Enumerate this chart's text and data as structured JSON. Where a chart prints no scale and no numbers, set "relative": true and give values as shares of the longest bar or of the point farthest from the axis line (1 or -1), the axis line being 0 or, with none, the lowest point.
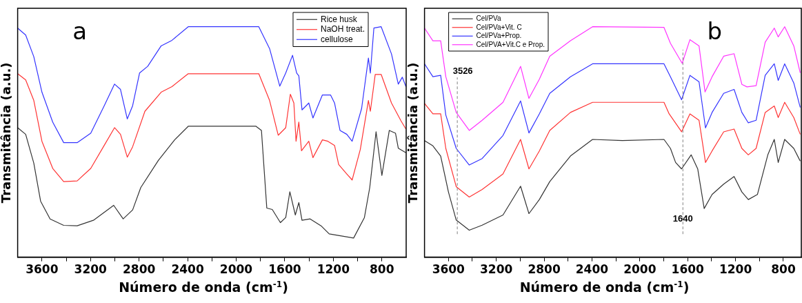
{
  "chart_data": [
    {
      "type": "line",
      "relative": true,
      "xlabel": "Número de onda (cm$^{-1}$)",
      "ylabel": "Transmitância (a.u.)",
      "xlim": [
        3800,
        600
      ],
      "xticks": [
        3600,
        {
          "value": 3400,
          "label": null
        },
        3200,
        {
          "value": 3000,
          "label": null
        },
        2800,
        {
          "value": 2600,
          "label": null
        },
        2400,
        {
          "value": 2200,
          "label": null
        },
        2000,
        {
          "value": 1800,
          "label": null
        },
        1600,
        {
          "value": 1400,
          "label": null
        },
        1200,
        {
          "value": 1000,
          "label": null
        },
        800
      ],
      "grid": false,
      "legend": "top right",
      "marker": "none",
      "line_style": "solid",
      "annotations": [
        "a"
      ],
      "series": [
        {
          "name": "Rice husk",
          "color": "#333333",
          "x": [
            3800,
            3734,
            3667,
            3611,
            3533,
            3421,
            3310,
            3176,
            3009,
            2931,
            2853,
            2786,
            2641,
            2507,
            2395,
            1837,
            1792,
            1748,
            1703,
            1636,
            1592,
            1558,
            1513,
            1484,
            1458,
            1391,
            1301,
            1234,
            1167,
            1033,
            944,
            900,
            848,
            800,
            739,
            688,
            665,
            602
          ],
          "values": [
            0.562,
            0.533,
            0.408,
            0.243,
            0.166,
            0.138,
            0.136,
            0.16,
            0.225,
            0.166,
            0.205,
            0.302,
            0.42,
            0.509,
            0.568,
            0.568,
            0.55,
            0.213,
            0.207,
            0.15,
            0.172,
            0.284,
            0.183,
            0.237,
            0.16,
            0.166,
            0.136,
            0.101,
            0.095,
            0.083,
            0.172,
            0.302,
            0.544,
            0.355,
            0.55,
            0.538,
            0.473,
            0.453
          ]
        },
        {
          "name": "NaOH treat.",
          "color": "#ff3333",
          "x": [
            3800,
            3734,
            3667,
            3600,
            3511,
            3421,
            3310,
            3198,
            3087,
            3002,
            2953,
            2897,
            2853,
            2752,
            2618,
            2529,
            2395,
            1814,
            1725,
            1654,
            1592,
            1554,
            1525,
            1507,
            1484,
            1462,
            1402,
            1368,
            1290,
            1245,
            1190,
            1156,
            1089,
            1045,
            978,
            911,
            895,
            855,
            806,
            721,
            643,
            602
          ],
          "values": [
            0.796,
            0.769,
            0.68,
            0.503,
            0.385,
            0.328,
            0.331,
            0.385,
            0.485,
            0.562,
            0.533,
            0.434,
            0.479,
            0.633,
            0.716,
            0.74,
            0.796,
            0.796,
            0.68,
            0.529,
            0.562,
            0.707,
            0.669,
            0.503,
            0.586,
            0.462,
            0.503,
            0.432,
            0.509,
            0.503,
            0.485,
            0.402,
            0.361,
            0.335,
            0.467,
            0.68,
            0.633,
            0.793,
            0.793,
            0.669,
            0.592,
            0.556
          ]
        },
        {
          "name": "cellulose",
          "color": "#3333ff",
          "x": [
            3800,
            3734,
            3667,
            3600,
            3511,
            3421,
            3310,
            3198,
            3087,
            3002,
            2953,
            2897,
            2853,
            2796,
            2729,
            2618,
            2529,
            2395,
            1814,
            1725,
            1641,
            1592,
            1536,
            1502,
            1484,
            1458,
            1402,
            1368,
            1290,
            1223,
            1190,
            1145,
            1089,
            1045,
            967,
            911,
            895,
            866,
            806,
            721,
            665,
            632,
            602
          ],
          "values": [
            0.994,
            0.964,
            0.87,
            0.716,
            0.586,
            0.497,
            0.497,
            0.538,
            0.657,
            0.751,
            0.728,
            0.6,
            0.657,
            0.799,
            0.828,
            0.917,
            0.941,
            1.0,
            1.0,
            0.905,
            0.742,
            0.799,
            0.876,
            0.799,
            0.787,
            0.639,
            0.669,
            0.604,
            0.704,
            0.704,
            0.669,
            0.55,
            0.533,
            0.503,
            0.645,
            0.864,
            0.799,
            0.994,
            1.0,
            0.882,
            0.751,
            0.781,
            0.74
          ]
        }
      ]
    },
    {
      "type": "line",
      "relative": true,
      "xlabel": "Número de onda (cm$^{-1}$)",
      "ylabel": "Transmitância (a.u.)",
      "xlim": [
        3800,
        650
      ],
      "xticks": [
        3600,
        {
          "value": 3400,
          "label": null
        },
        3200,
        {
          "value": 3000,
          "label": null
        },
        2800,
        {
          "value": 2600,
          "label": null
        },
        2400,
        {
          "value": 2200,
          "label": null
        },
        2000,
        {
          "value": 1800,
          "label": null
        },
        1600,
        {
          "value": 1400,
          "label": null
        },
        1200,
        {
          "value": 1000,
          "label": null
        },
        800
      ],
      "grid": false,
      "legend": "top left",
      "marker": "none",
      "line_style": "solid",
      "annotations": [
        "b"
      ],
      "ref_lines": [
        {
          "axis": "x",
          "value": 3526,
          "label": "3526",
          "color": "#808080",
          "line_style": "dashed"
        },
        {
          "axis": "x",
          "value": 1640,
          "label": "1640",
          "color": "#808080",
          "line_style": "dashed"
        }
      ],
      "series": [
        {
          "name": "Cel/PVa",
          "color": "#333333",
          "x": [
            3800,
            3730,
            3665,
            3600,
            3535,
            3426,
            3318,
            3144,
            2997,
            2927,
            2840,
            2753,
            2580,
            2395,
            2146,
            1798,
            1744,
            1701,
            1651,
            1571,
            1516,
            1462,
            1396,
            1299,
            1212,
            1147,
            1093,
            1017,
            930,
            876,
            843,
            789,
            713,
            659
          ],
          "values": [
            0.506,
            0.483,
            0.439,
            0.283,
            0.161,
            0.117,
            0.139,
            0.183,
            0.308,
            0.189,
            0.25,
            0.328,
            0.439,
            0.511,
            0.506,
            0.511,
            0.472,
            0.411,
            0.383,
            0.444,
            0.383,
            0.211,
            0.272,
            0.317,
            0.35,
            0.283,
            0.25,
            0.272,
            0.444,
            0.511,
            0.411,
            0.511,
            0.472,
            0.417
          ]
        },
        {
          "name": "Cel/PVa+Vit. C",
          "color": "#ff3333",
          "x": [
            3800,
            3730,
            3665,
            3622,
            3535,
            3426,
            3318,
            3144,
            2997,
            2927,
            2840,
            2753,
            2580,
            2395,
            1798,
            1755,
            1651,
            1581,
            1505,
            1451,
            1396,
            1299,
            1212,
            1147,
            1093,
            1028,
            952,
            876,
            843,
            789,
            713,
            659
          ],
          "values": [
            0.667,
            0.622,
            0.622,
            0.472,
            0.306,
            0.261,
            0.294,
            0.361,
            0.511,
            0.383,
            0.461,
            0.55,
            0.628,
            0.672,
            0.672,
            0.622,
            0.544,
            0.622,
            0.594,
            0.411,
            0.461,
            0.544,
            0.556,
            0.472,
            0.444,
            0.472,
            0.628,
            0.656,
            0.606,
            0.672,
            0.606,
            0.533
          ]
        },
        {
          "name": "Cel/PVa+Prop.",
          "color": "#3333ff",
          "x": [
            3800,
            3730,
            3665,
            3622,
            3535,
            3426,
            3318,
            3144,
            2997,
            2927,
            2840,
            2753,
            2580,
            2395,
            1798,
            1744,
            1651,
            1581,
            1505,
            1451,
            1396,
            1299,
            1212,
            1147,
            1093,
            1028,
            952,
            876,
            843,
            789,
            713,
            659
          ],
          "values": [
            0.839,
            0.783,
            0.789,
            0.617,
            0.472,
            0.4,
            0.428,
            0.528,
            0.678,
            0.539,
            0.622,
            0.711,
            0.783,
            0.839,
            0.839,
            0.783,
            0.683,
            0.789,
            0.761,
            0.561,
            0.628,
            0.711,
            0.728,
            0.628,
            0.583,
            0.594,
            0.789,
            0.839,
            0.767,
            0.839,
            0.756,
            0.65
          ]
        },
        {
          "name": "Cel/PVA+Vit.C e Prop.",
          "color": "#ff33ff",
          "x": [
            3800,
            3730,
            3665,
            3622,
            3535,
            3426,
            3318,
            3144,
            2997,
            2927,
            2840,
            2753,
            2580,
            2395,
            1798,
            1744,
            1646,
            1581,
            1505,
            1455,
            1396,
            1299,
            1212,
            1147,
            1104,
            1028,
            952,
            876,
            843,
            789,
            713,
            659
          ],
          "values": [
            0.994,
            0.939,
            0.939,
            0.783,
            0.628,
            0.55,
            0.594,
            0.672,
            0.828,
            0.689,
            0.772,
            0.872,
            0.939,
            1.0,
            0.997,
            0.928,
            0.841,
            0.944,
            0.917,
            0.717,
            0.783,
            0.872,
            0.883,
            0.75,
            0.739,
            0.744,
            0.933,
            0.994,
            0.956,
            1.0,
            0.917,
            0.8
          ]
        }
      ]
    }
  ]
}
